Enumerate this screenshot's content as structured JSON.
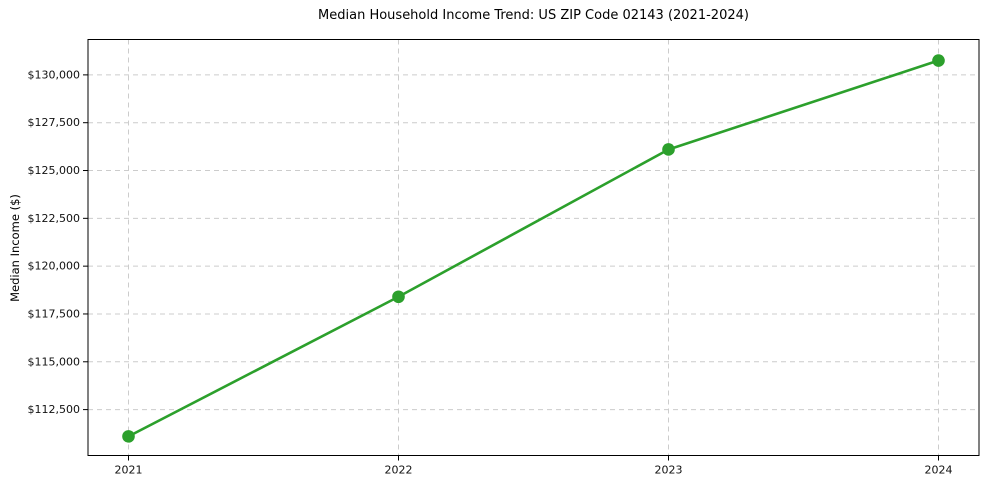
{
  "page": {
    "background": "#ffffff"
  },
  "chart_data": {
    "type": "line",
    "title": "Median Household Income Trend: US ZIP Code 02143 (2021-2024)",
    "xlabel": "",
    "ylabel": "Median Income ($)",
    "x": [
      2021,
      2022,
      2023,
      2024
    ],
    "x_tick_labels": [
      "2021",
      "2022",
      "2023",
      "2024"
    ],
    "series": [
      {
        "name": "Median Household Income",
        "values": [
          111100,
          118400,
          126100,
          130750
        ],
        "color": "#2ca02c",
        "marker": "circle",
        "line_width": 2.6,
        "marker_radius": 6.3
      }
    ],
    "y_ticks": [
      {
        "value": 112500,
        "label": "$112,500"
      },
      {
        "value": 115000,
        "label": "$115,000"
      },
      {
        "value": 117500,
        "label": "$117,500"
      },
      {
        "value": 120000,
        "label": "$120,000"
      },
      {
        "value": 122500,
        "label": "$122,500"
      },
      {
        "value": 125000,
        "label": "$125,000"
      },
      {
        "value": 127500,
        "label": "$127,500"
      },
      {
        "value": 130000,
        "label": "$130,000"
      }
    ],
    "xlim": [
      2020.85,
      2024.15
    ],
    "ylim": [
      110100,
      131850
    ],
    "grid": {
      "show": true,
      "style": "dashed",
      "color": "#cccccc"
    },
    "legend": {
      "show": false
    },
    "frame_color": "#000000",
    "tick_color": "#000000"
  }
}
